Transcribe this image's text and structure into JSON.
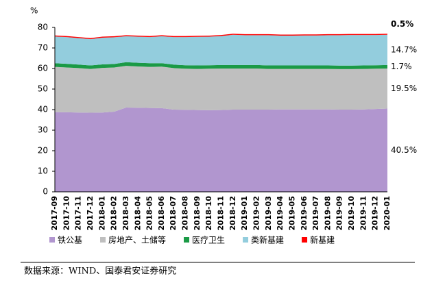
{
  "chart_data": {
    "type": "stacked_area",
    "y_label": "%",
    "categories": [
      "2017-09",
      "2017-10",
      "2017-11",
      "2017-12",
      "2018-01",
      "2018-02",
      "2018-03",
      "2018-04",
      "2018-05",
      "2018-06",
      "2018-07",
      "2018-08",
      "2018-09",
      "2018-10",
      "2018-11",
      "2018-12",
      "2019-01",
      "2019-02",
      "2019-03",
      "2019-04",
      "2019-05",
      "2019-06",
      "2019-07",
      "2019-08",
      "2019-09",
      "2019-10",
      "2019-11",
      "2019-12",
      "2020-01"
    ],
    "series": [
      {
        "name": "铁公基",
        "color": "#b196cf",
        "label_color": "#000000",
        "values": [
          38.8,
          38.7,
          38.6,
          38.5,
          38.6,
          39.0,
          41.0,
          40.9,
          40.8,
          40.7,
          40.0,
          39.9,
          39.8,
          39.7,
          39.8,
          40.0,
          40.0,
          40.0,
          40.0,
          40.1,
          40.1,
          40.1,
          40.1,
          40.1,
          40.0,
          40.0,
          40.1,
          40.3,
          40.5
        ],
        "value_labels": [
          null,
          null,
          null,
          null,
          null,
          null,
          null,
          null,
          null,
          null,
          null,
          null,
          null,
          null,
          null,
          null,
          null,
          null,
          null,
          null,
          null,
          null,
          null,
          null,
          null,
          null,
          null,
          null,
          "40.5%"
        ]
      },
      {
        "name": "房地产、土储等",
        "color": "#bfbfbf",
        "label_color": "#000000",
        "values": [
          22.0,
          21.8,
          21.6,
          21.3,
          21.7,
          21.5,
          20.3,
          20.1,
          20.0,
          20.2,
          20.2,
          20.0,
          20.0,
          20.2,
          20.2,
          20.0,
          20.0,
          20.0,
          19.8,
          19.7,
          19.7,
          19.7,
          19.7,
          19.7,
          19.7,
          19.7,
          19.7,
          19.6,
          19.5
        ],
        "value_labels": [
          null,
          null,
          null,
          null,
          null,
          null,
          null,
          null,
          null,
          null,
          null,
          null,
          null,
          null,
          null,
          null,
          null,
          null,
          null,
          null,
          null,
          null,
          null,
          null,
          null,
          null,
          null,
          null,
          "19.5%"
        ]
      },
      {
        "name": "医疗卫生",
        "color": "#1a9a46",
        "label_color": "#000000",
        "values": [
          1.8,
          1.8,
          1.7,
          1.7,
          1.7,
          1.7,
          1.8,
          1.8,
          1.8,
          1.7,
          1.7,
          1.7,
          1.7,
          1.7,
          1.7,
          1.7,
          1.7,
          1.7,
          1.7,
          1.7,
          1.7,
          1.7,
          1.7,
          1.7,
          1.7,
          1.7,
          1.7,
          1.7,
          1.7
        ],
        "value_labels": [
          null,
          null,
          null,
          null,
          null,
          null,
          null,
          null,
          null,
          null,
          null,
          null,
          null,
          null,
          null,
          null,
          null,
          null,
          null,
          null,
          null,
          null,
          null,
          null,
          null,
          null,
          null,
          null,
          "1.7%"
        ]
      },
      {
        "name": "类新基建",
        "color": "#93cddd",
        "label_color": "#000000",
        "values": [
          13.0,
          13.0,
          12.9,
          12.8,
          13.0,
          13.0,
          12.6,
          12.7,
          12.7,
          13.1,
          13.4,
          13.7,
          13.9,
          13.9,
          14.1,
          14.7,
          14.5,
          14.5,
          14.7,
          14.5,
          14.5,
          14.6,
          14.6,
          14.7,
          14.8,
          14.9,
          14.8,
          14.7,
          14.7
        ],
        "value_labels": [
          null,
          null,
          null,
          null,
          null,
          null,
          null,
          null,
          null,
          null,
          null,
          null,
          null,
          null,
          null,
          null,
          null,
          null,
          null,
          null,
          null,
          null,
          null,
          null,
          null,
          null,
          null,
          null,
          "14.7%"
        ]
      },
      {
        "name": "新基建",
        "color": "#ff0000",
        "label_color": "#ff0000",
        "values": [
          0.5,
          0.5,
          0.5,
          0.5,
          0.5,
          0.5,
          0.5,
          0.5,
          0.5,
          0.5,
          0.5,
          0.5,
          0.5,
          0.5,
          0.5,
          0.5,
          0.5,
          0.5,
          0.5,
          0.5,
          0.5,
          0.5,
          0.5,
          0.5,
          0.5,
          0.5,
          0.5,
          0.5,
          0.5
        ],
        "value_labels": [
          null,
          null,
          null,
          null,
          null,
          null,
          null,
          null,
          null,
          null,
          null,
          null,
          null,
          null,
          null,
          null,
          null,
          null,
          null,
          null,
          null,
          null,
          null,
          null,
          null,
          null,
          null,
          null,
          "0.5%"
        ]
      }
    ],
    "ylim": [
      0,
      80
    ],
    "yticks": [
      0,
      10,
      20,
      30,
      40,
      50,
      60,
      70,
      80
    ],
    "grid": false,
    "source": "数据来源：WIND、国泰君安证券研究"
  }
}
